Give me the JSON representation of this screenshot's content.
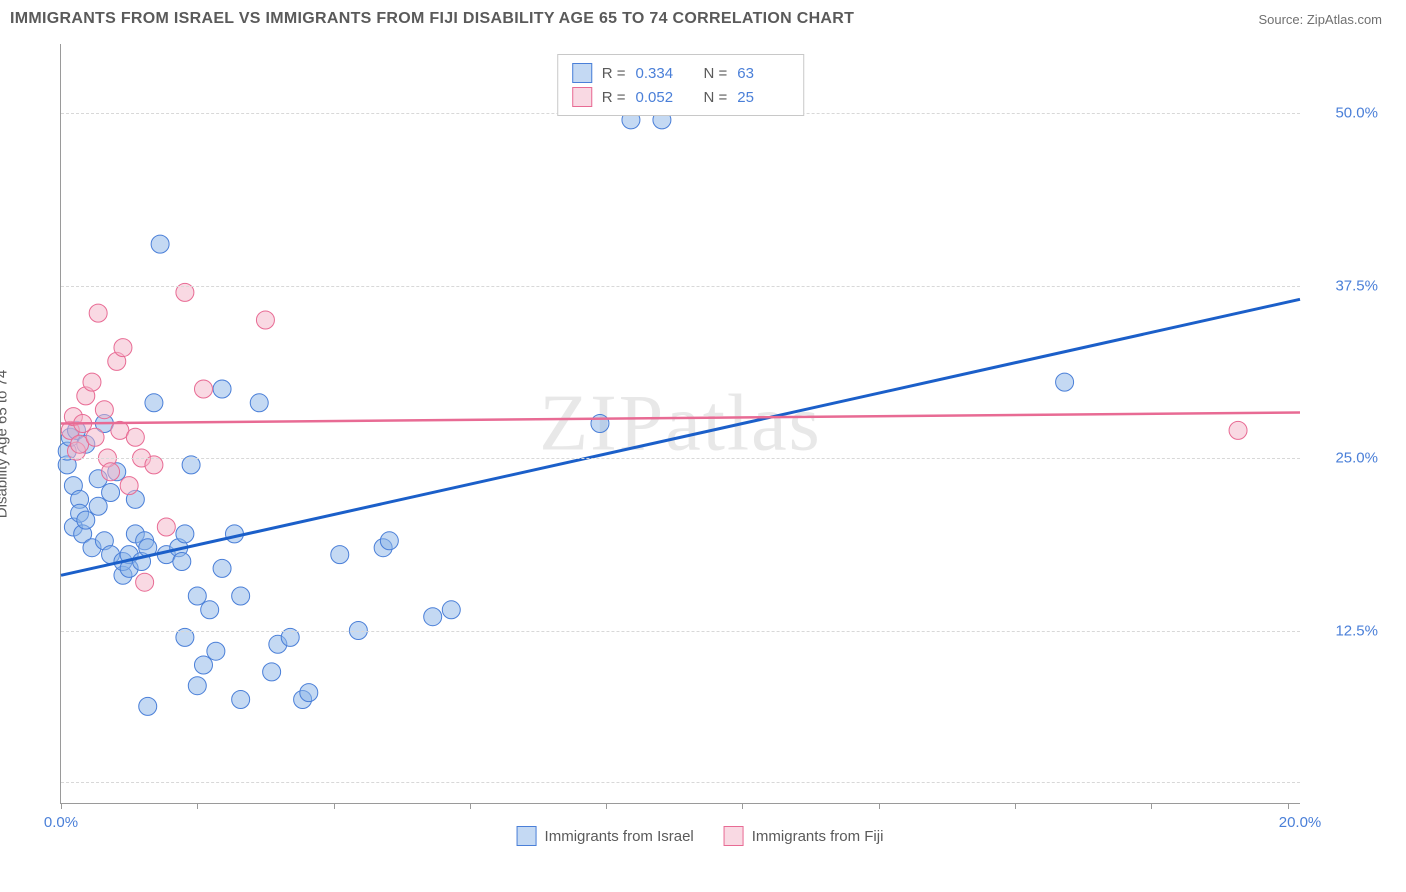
{
  "header": {
    "title": "IMMIGRANTS FROM ISRAEL VS IMMIGRANTS FROM FIJI DISABILITY AGE 65 TO 74 CORRELATION CHART",
    "source": "Source: ZipAtlas.com"
  },
  "watermark": "ZIPatlas",
  "chart": {
    "type": "scatter",
    "ylabel": "Disability Age 65 to 74",
    "background_color": "#ffffff",
    "grid_color": "#d8d8d8",
    "axis_color": "#9a9a9a",
    "xlim": [
      0,
      20
    ],
    "ylim": [
      0,
      55
    ],
    "xtick_labels": [
      {
        "x": 0,
        "label": "0.0%"
      },
      {
        "x": 20,
        "label": "20.0%"
      }
    ],
    "xtick_marks": [
      0,
      2.2,
      4.4,
      6.6,
      8.8,
      11,
      13.2,
      15.4,
      17.6,
      19.8
    ],
    "ytick_labels": [
      {
        "y": 12.5,
        "label": "12.5%"
      },
      {
        "y": 25.0,
        "label": "25.0%"
      },
      {
        "y": 37.5,
        "label": "37.5%"
      },
      {
        "y": 50.0,
        "label": "50.0%"
      }
    ],
    "gridlines": [
      1.5,
      12.5,
      25.0,
      37.5,
      50.0
    ],
    "legend_top": {
      "rows": [
        {
          "swatch": "blue",
          "r_label": "R =",
          "r_value": "0.334",
          "n_label": "N =",
          "n_value": "63"
        },
        {
          "swatch": "pink",
          "r_label": "R =",
          "r_value": "0.052",
          "n_label": "N =",
          "n_value": "25"
        }
      ]
    },
    "legend_bottom": {
      "items": [
        {
          "swatch": "blue",
          "label": "Immigrants from Israel"
        },
        {
          "swatch": "pink",
          "label": "Immigrants from Fiji"
        }
      ]
    },
    "series": [
      {
        "name": "israel",
        "color_fill": "rgba(137,180,232,0.5)",
        "color_stroke": "#4a7fd8",
        "marker_radius": 9,
        "trend": {
          "x1": 0,
          "y1": 16.5,
          "x2": 20,
          "y2": 36.5,
          "color": "#1b5fc9",
          "width": 3
        },
        "points": [
          [
            0.1,
            24.5
          ],
          [
            0.1,
            25.5
          ],
          [
            0.15,
            26.5
          ],
          [
            0.2,
            20.0
          ],
          [
            0.2,
            23.0
          ],
          [
            0.25,
            27.0
          ],
          [
            0.3,
            22.0
          ],
          [
            0.3,
            21.0
          ],
          [
            0.35,
            19.5
          ],
          [
            0.4,
            20.5
          ],
          [
            0.4,
            26.0
          ],
          [
            0.5,
            18.5
          ],
          [
            0.6,
            23.5
          ],
          [
            0.6,
            21.5
          ],
          [
            0.7,
            19.0
          ],
          [
            0.7,
            27.5
          ],
          [
            0.8,
            22.5
          ],
          [
            0.8,
            18.0
          ],
          [
            0.9,
            24.0
          ],
          [
            1.0,
            16.5
          ],
          [
            1.0,
            17.5
          ],
          [
            1.1,
            18.0
          ],
          [
            1.1,
            17.0
          ],
          [
            1.2,
            19.5
          ],
          [
            1.2,
            22.0
          ],
          [
            1.3,
            17.5
          ],
          [
            1.35,
            19.0
          ],
          [
            1.4,
            18.5
          ],
          [
            1.4,
            7.0
          ],
          [
            1.5,
            29.0
          ],
          [
            1.6,
            40.5
          ],
          [
            1.7,
            18.0
          ],
          [
            1.9,
            18.5
          ],
          [
            1.95,
            17.5
          ],
          [
            2.0,
            19.5
          ],
          [
            2.0,
            12.0
          ],
          [
            2.1,
            24.5
          ],
          [
            2.2,
            15.0
          ],
          [
            2.2,
            8.5
          ],
          [
            2.3,
            10.0
          ],
          [
            2.4,
            14.0
          ],
          [
            2.5,
            11.0
          ],
          [
            2.6,
            17.0
          ],
          [
            2.6,
            30.0
          ],
          [
            2.8,
            19.5
          ],
          [
            2.9,
            15.0
          ],
          [
            2.9,
            7.5
          ],
          [
            3.2,
            29.0
          ],
          [
            3.4,
            9.5
          ],
          [
            3.5,
            11.5
          ],
          [
            3.7,
            12.0
          ],
          [
            3.9,
            7.5
          ],
          [
            4.0,
            8.0
          ],
          [
            4.5,
            18.0
          ],
          [
            4.8,
            12.5
          ],
          [
            5.2,
            18.5
          ],
          [
            5.3,
            19.0
          ],
          [
            6.0,
            13.5
          ],
          [
            6.3,
            14.0
          ],
          [
            8.7,
            27.5
          ],
          [
            9.2,
            49.5
          ],
          [
            9.7,
            49.5
          ],
          [
            16.2,
            30.5
          ]
        ]
      },
      {
        "name": "fiji",
        "color_fill": "rgba(244,180,200,0.5)",
        "color_stroke": "#e86b94",
        "marker_radius": 9,
        "trend": {
          "x1": 0,
          "y1": 27.5,
          "x2": 20,
          "y2": 28.3,
          "color": "#e86b94",
          "width": 2.5
        },
        "points": [
          [
            0.15,
            27.0
          ],
          [
            0.2,
            28.0
          ],
          [
            0.25,
            25.5
          ],
          [
            0.3,
            26.0
          ],
          [
            0.35,
            27.5
          ],
          [
            0.4,
            29.5
          ],
          [
            0.5,
            30.5
          ],
          [
            0.55,
            26.5
          ],
          [
            0.6,
            35.5
          ],
          [
            0.7,
            28.5
          ],
          [
            0.75,
            25.0
          ],
          [
            0.8,
            24.0
          ],
          [
            0.9,
            32.0
          ],
          [
            0.95,
            27.0
          ],
          [
            1.0,
            33.0
          ],
          [
            1.1,
            23.0
          ],
          [
            1.2,
            26.5
          ],
          [
            1.3,
            25.0
          ],
          [
            1.35,
            16.0
          ],
          [
            1.5,
            24.5
          ],
          [
            1.7,
            20.0
          ],
          [
            2.0,
            37.0
          ],
          [
            2.3,
            30.0
          ],
          [
            3.3,
            35.0
          ],
          [
            19.0,
            27.0
          ]
        ]
      }
    ],
    "label_color": "#4a7fd8",
    "title_fontsize": 16,
    "label_fontsize": 15
  }
}
